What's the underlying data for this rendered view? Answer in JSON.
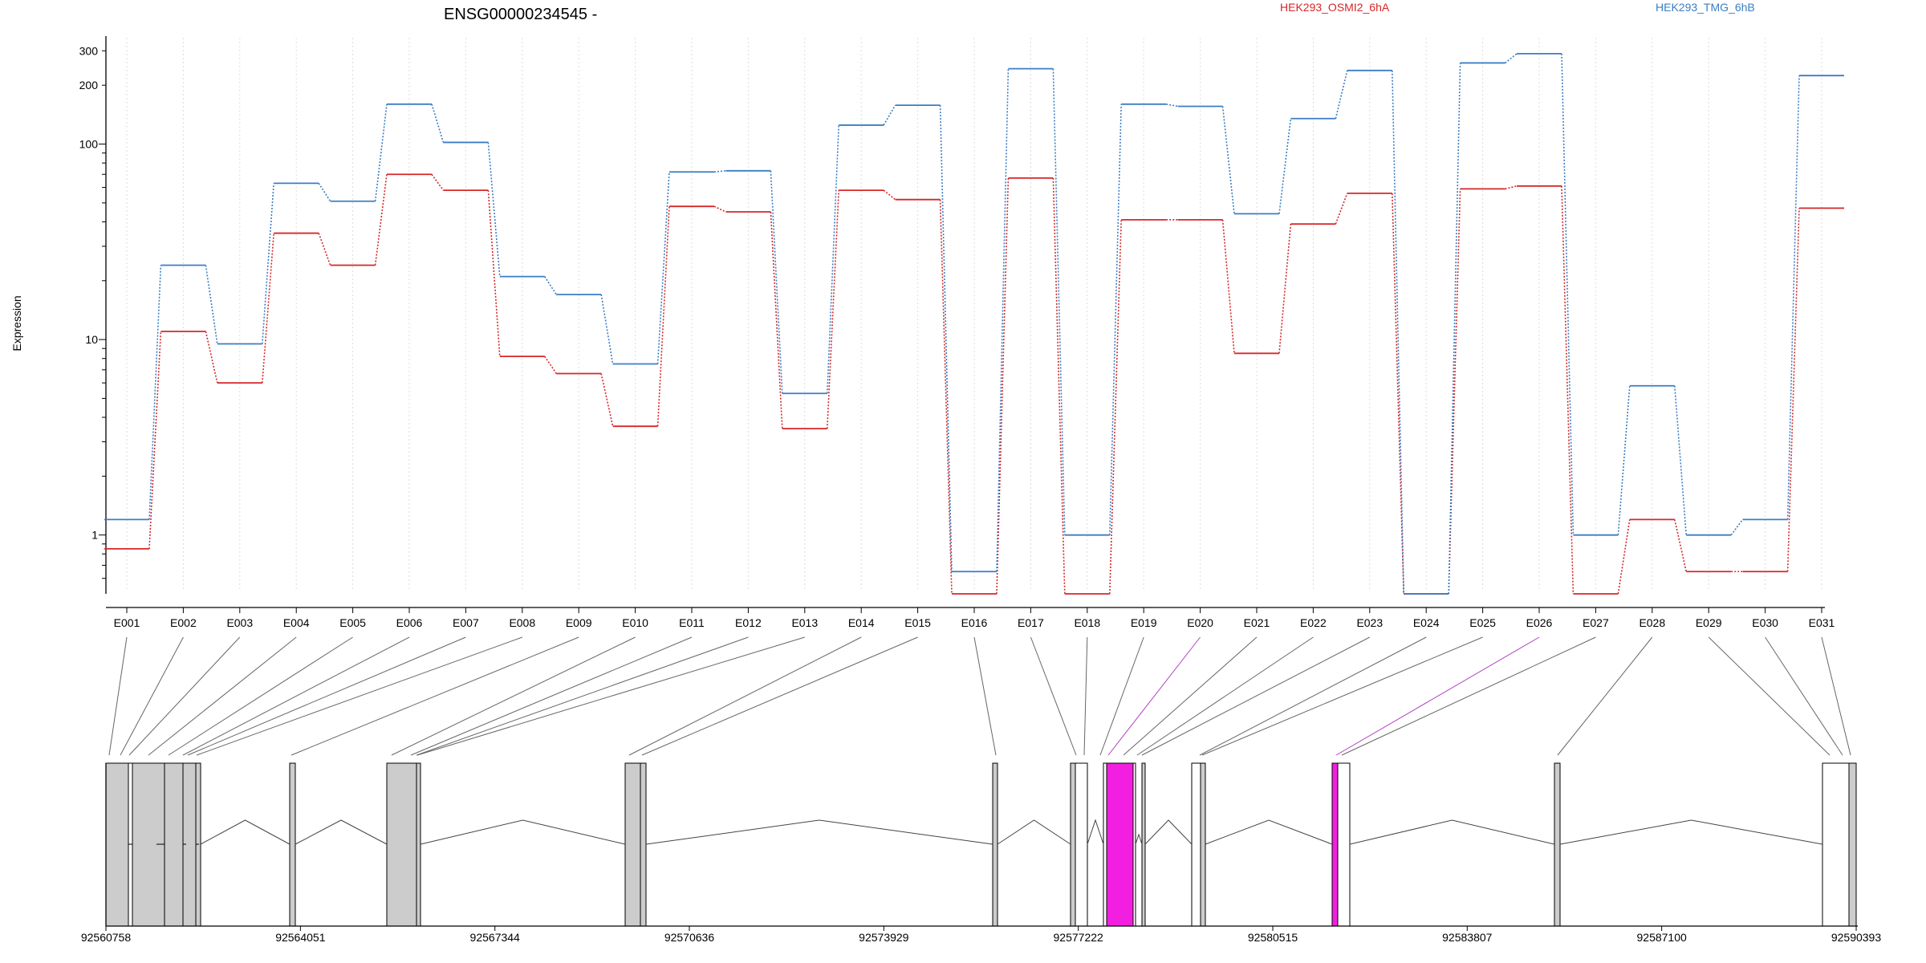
{
  "chart_data": {
    "type": "line",
    "title": "ENSG00000234545 -",
    "ylabel": "Expression",
    "yscale": "log",
    "ylim": [
      0.5,
      350
    ],
    "yticks": [
      1,
      10,
      100,
      200,
      300
    ],
    "ytick_labels": [
      "1",
      "10",
      "100",
      "200",
      "300"
    ],
    "categories": [
      "E001",
      "E002",
      "E003",
      "E004",
      "E005",
      "E006",
      "E007",
      "E008",
      "E009",
      "E010",
      "E011",
      "E012",
      "E013",
      "E014",
      "E015",
      "E016",
      "E017",
      "E018",
      "E019",
      "E020",
      "E021",
      "E022",
      "E023",
      "E024",
      "E025",
      "E026",
      "E027",
      "E028",
      "E029",
      "E030",
      "E031"
    ],
    "series": [
      {
        "name": "HEK293_OSMI2_6hA",
        "color": "#d62728",
        "values": [
          0.85,
          11,
          6,
          35,
          24,
          70,
          58,
          8.2,
          6.7,
          3.6,
          48,
          45,
          3.5,
          58,
          52,
          0.5,
          67,
          0.5,
          41,
          41,
          8.5,
          39,
          56,
          0.5,
          59,
          61,
          0.5,
          1.2,
          0.65,
          0.65,
          47
        ]
      },
      {
        "name": "HEK293_TMG_6hB",
        "color": "#3b7dc4",
        "values": [
          1.2,
          24,
          9.5,
          63,
          51,
          160,
          102,
          21,
          17,
          7.5,
          72,
          73,
          5.3,
          125,
          158,
          0.65,
          243,
          1,
          160,
          156,
          44,
          135,
          238,
          0.5,
          260,
          290,
          1,
          5.8,
          1,
          1.2,
          224
        ]
      }
    ],
    "grid": "vertical-dotted",
    "legend": "top-right",
    "genome": {
      "xlim": [
        92560758,
        92590393
      ],
      "ticks": [
        92560758,
        92564051,
        92567344,
        92570636,
        92573929,
        92577222,
        92580515,
        92583807,
        92587100,
        92590393
      ],
      "tick_labels": [
        "92560758",
        "92564051",
        "92567344",
        "92570636",
        "92573929",
        "92577222",
        "92580515",
        "92583807",
        "92587100",
        "92590393"
      ]
    }
  }
}
